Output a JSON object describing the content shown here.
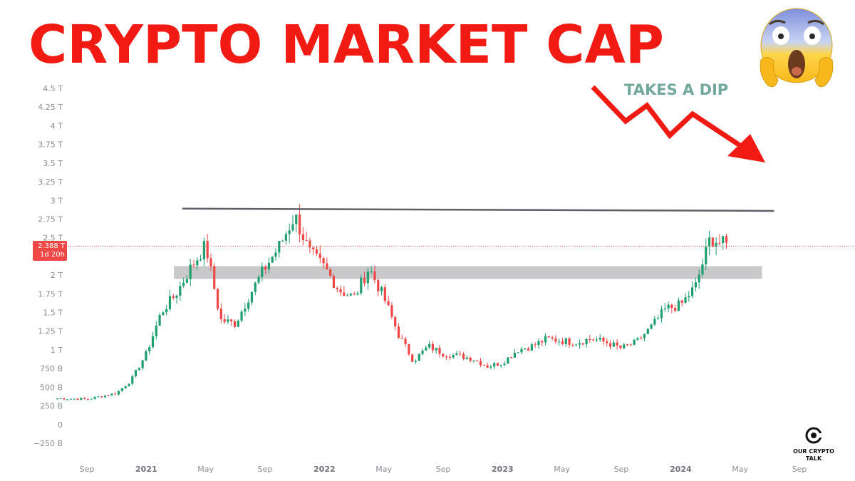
{
  "headline": "CRYPTO MARKET CAP",
  "annotation": "TAKES A DIP",
  "price_badge": {
    "value": "2.388 T",
    "countdown": "1d 20h"
  },
  "logo": {
    "line1": "OUR CRYPTO",
    "line2": "TALK"
  },
  "colors": {
    "headline": "#f21b14",
    "up": "#1f9e6e",
    "down": "#ef4646",
    "annotation": "#72a89c",
    "resistance_line": "#5d6068",
    "support_zone": "#c9c9cb"
  },
  "icons": {
    "emoji": "screaming-face-icon",
    "arrow": "down-trend-arrow-icon",
    "logo": "our-crypto-talk-logo-icon"
  },
  "chart_data": {
    "type": "candlestick",
    "interval": "weekly",
    "ylim": [
      -350,
      4600
    ],
    "y_unit": "billion USD",
    "y_ticks": [
      {
        "v": 4500,
        "label": "4.5 T"
      },
      {
        "v": 4250,
        "label": "4.25 T"
      },
      {
        "v": 4000,
        "label": "4 T"
      },
      {
        "v": 3750,
        "label": "3.75 T"
      },
      {
        "v": 3500,
        "label": "3.5 T"
      },
      {
        "v": 3250,
        "label": "3.25 T"
      },
      {
        "v": 3000,
        "label": "3 T"
      },
      {
        "v": 2750,
        "label": "2.75 T"
      },
      {
        "v": 2500,
        "label": "2.5 T"
      },
      {
        "v": 2000,
        "label": "2 T"
      },
      {
        "v": 1750,
        "label": "1.75 T"
      },
      {
        "v": 1500,
        "label": "1.5 T"
      },
      {
        "v": 1250,
        "label": "1.25 T"
      },
      {
        "v": 1000,
        "label": "1 T"
      },
      {
        "v": 750,
        "label": "750 B"
      },
      {
        "v": 500,
        "label": "500 B"
      },
      {
        "v": 250,
        "label": "250 B"
      },
      {
        "v": 0,
        "label": "0"
      },
      {
        "v": -250,
        "label": "−250 B"
      }
    ],
    "x_ticks": [
      {
        "date": "2020-09",
        "label": "Sep",
        "year": false
      },
      {
        "date": "2021-01",
        "label": "2021",
        "year": true
      },
      {
        "date": "2021-05",
        "label": "May",
        "year": false
      },
      {
        "date": "2021-09",
        "label": "Sep",
        "year": false
      },
      {
        "date": "2022-01",
        "label": "2022",
        "year": true
      },
      {
        "date": "2022-05",
        "label": "May",
        "year": false
      },
      {
        "date": "2022-09",
        "label": "Sep",
        "year": false
      },
      {
        "date": "2023-01",
        "label": "2023",
        "year": true
      },
      {
        "date": "2023-05",
        "label": "May",
        "year": false
      },
      {
        "date": "2023-09",
        "label": "Sep",
        "year": false
      },
      {
        "date": "2024-01",
        "label": "2024",
        "year": true
      },
      {
        "date": "2024-05",
        "label": "May",
        "year": false
      },
      {
        "date": "2024-09",
        "label": "Sep",
        "year": false
      }
    ],
    "x_range": [
      "2020-07",
      "2024-10"
    ],
    "current_price": 2388,
    "resistance_line": {
      "start": [
        "2021-04",
        2890
      ],
      "end": [
        "2024-06",
        2860
      ]
    },
    "support_zone": {
      "start": "2021-02",
      "end": "2024-06",
      "low": 1950,
      "high": 2120
    },
    "close_anchors": [
      [
        "2020-07",
        350
      ],
      [
        "2020-09",
        340
      ],
      [
        "2020-11",
        420
      ],
      [
        "2020-12",
        600
      ],
      [
        "2021-01",
        950
      ],
      [
        "2021-02",
        1500
      ],
      [
        "2021-03",
        1750
      ],
      [
        "2021-04",
        2100
      ],
      [
        "2021-05",
        2400
      ],
      [
        "2021-06",
        1400
      ],
      [
        "2021-07",
        1350
      ],
      [
        "2021-08",
        1750
      ],
      [
        "2021-09",
        2100
      ],
      [
        "2021-10",
        2400
      ],
      [
        "2021-11",
        2800
      ],
      [
        "2021-12",
        2300
      ],
      [
        "2022-01",
        2100
      ],
      [
        "2022-02",
        1800
      ],
      [
        "2022-03",
        1700
      ],
      [
        "2022-04",
        2100
      ],
      [
        "2022-05",
        1700
      ],
      [
        "2022-06",
        1200
      ],
      [
        "2022-07",
        850
      ],
      [
        "2022-08",
        1050
      ],
      [
        "2022-09",
        950
      ],
      [
        "2022-10",
        920
      ],
      [
        "2022-11",
        880
      ],
      [
        "2022-12",
        780
      ],
      [
        "2023-01",
        830
      ],
      [
        "2023-02",
        1000
      ],
      [
        "2023-03",
        1050
      ],
      [
        "2023-04",
        1150
      ],
      [
        "2023-05",
        1120
      ],
      [
        "2023-06",
        1100
      ],
      [
        "2023-07",
        1150
      ],
      [
        "2023-08",
        1100
      ],
      [
        "2023-09",
        1020
      ],
      [
        "2023-10",
        1100
      ],
      [
        "2023-11",
        1300
      ],
      [
        "2023-12",
        1550
      ],
      [
        "2024-01",
        1600
      ],
      [
        "2024-02",
        1850
      ],
      [
        "2024-03",
        2500
      ],
      [
        "2024-04",
        2400
      ]
    ]
  }
}
